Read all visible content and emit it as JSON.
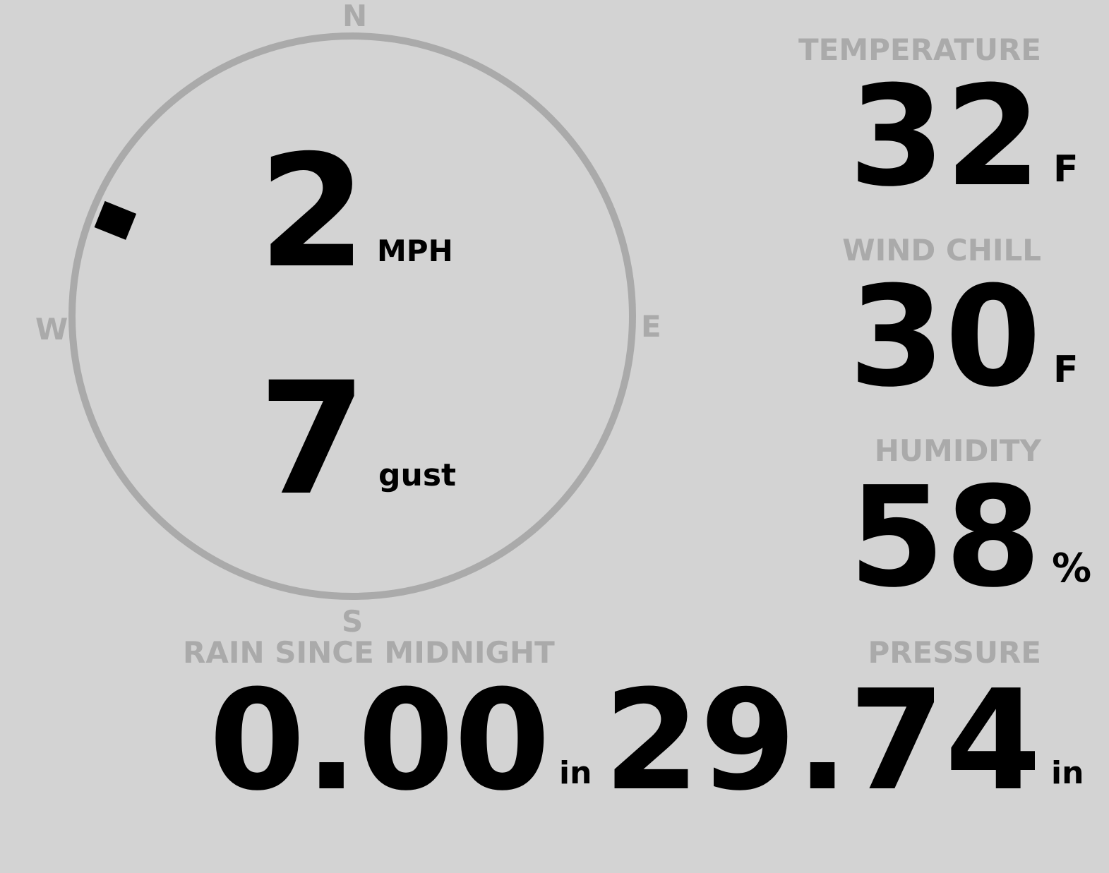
{
  "wind": {
    "speed": "2",
    "speed_unit": "MPH",
    "gust": "7",
    "gust_label": "gust",
    "direction_deg": 292,
    "cardinals": {
      "n": "N",
      "e": "E",
      "s": "S",
      "w": "W"
    }
  },
  "temperature": {
    "label": "TEMPERATURE",
    "value": "32",
    "unit": "F"
  },
  "wind_chill": {
    "label": "WIND CHILL",
    "value": "30",
    "unit": "F"
  },
  "humidity": {
    "label": "HUMIDITY",
    "value": "58",
    "unit": "%"
  },
  "rain": {
    "label": "RAIN SINCE MIDNIGHT",
    "value": "0.00",
    "unit": "in"
  },
  "pressure": {
    "label": "PRESSURE",
    "value": "29.74",
    "unit": "in"
  },
  "colors": {
    "background": "#d3d3d3",
    "ring": "#aaaaaa",
    "label": "#aaaaaa",
    "value": "#000000",
    "marker": "#000000"
  }
}
